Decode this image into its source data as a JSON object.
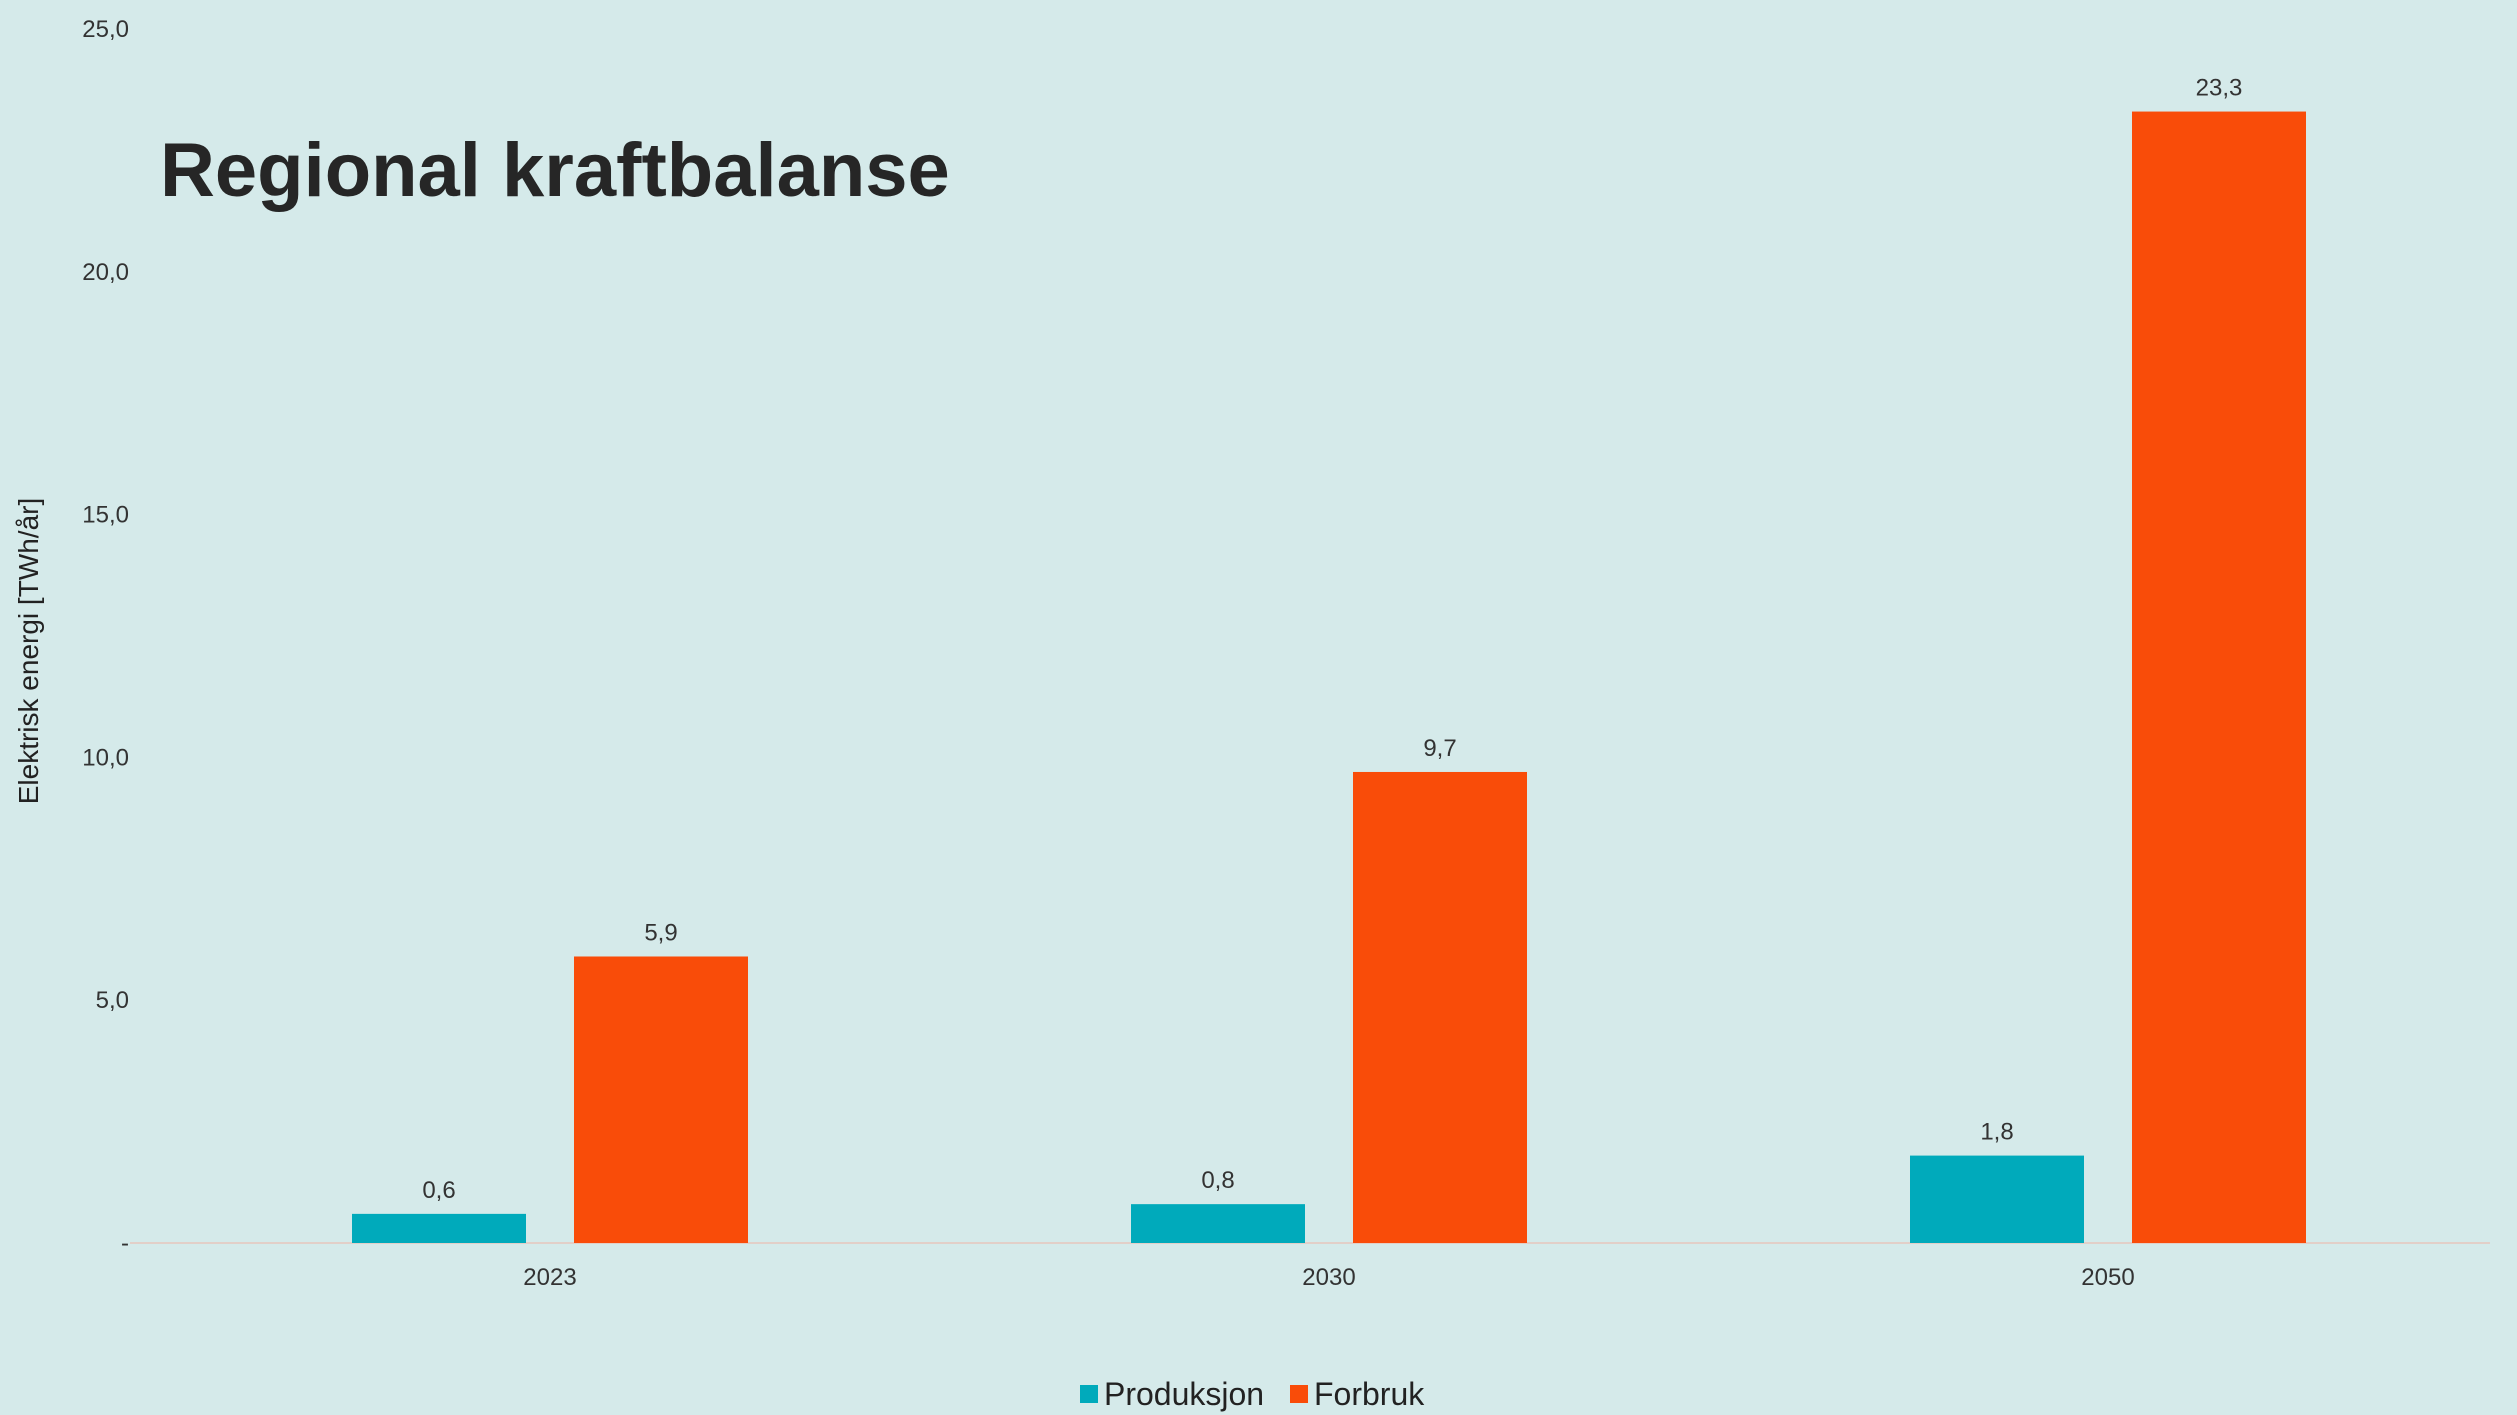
{
  "chart_data": {
    "type": "bar",
    "title": "Regional kraftbalanse",
    "ylabel": "Elektrisk energi [TWh/år]",
    "xlabel": "",
    "categories": [
      "2023",
      "2030",
      "2050"
    ],
    "series": [
      {
        "name": "Produksjon",
        "color": "#00aabb",
        "values": [
          0.6,
          0.8,
          1.8
        ],
        "labels": [
          "0,6",
          "0,8",
          "1,8"
        ]
      },
      {
        "name": "Forbruk",
        "color": "#f94c09",
        "values": [
          5.9,
          9.7,
          23.3
        ],
        "labels": [
          "5,9",
          "9,7",
          "23,3"
        ]
      }
    ],
    "ylim": [
      0,
      25
    ],
    "yticks": [
      {
        "value": 0,
        "label": "-"
      },
      {
        "value": 5,
        "label": "5,0"
      },
      {
        "value": 10,
        "label": "10,0"
      },
      {
        "value": 15,
        "label": "15,0"
      },
      {
        "value": 20,
        "label": "20,0"
      },
      {
        "value": 25,
        "label": "25,0"
      }
    ],
    "grid": false,
    "legend_position": "bottom-center"
  }
}
